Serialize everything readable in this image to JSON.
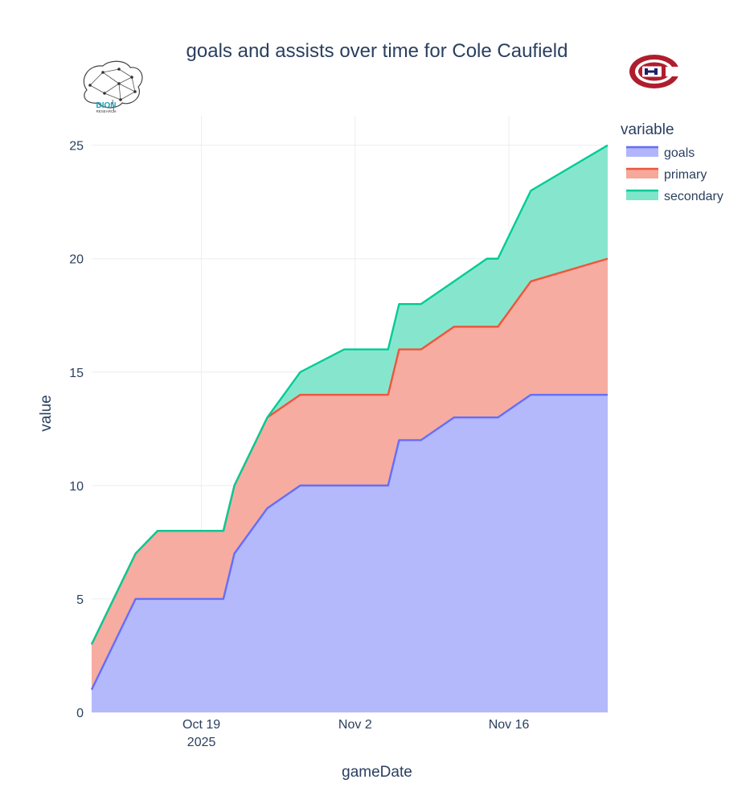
{
  "chart_data": {
    "type": "area",
    "title": "goals and assists over time for Cole Caufield",
    "xlabel": "gameDate",
    "ylabel": "value",
    "legend_title": "variable",
    "legend_position": "top-right",
    "stacked": true,
    "x": [
      "2025-10-09",
      "2025-10-11",
      "2025-10-13",
      "2025-10-15",
      "2025-10-18",
      "2025-10-21",
      "2025-10-22",
      "2025-10-25",
      "2025-10-28",
      "2025-11-01",
      "2025-11-05",
      "2025-11-06",
      "2025-11-08",
      "2025-11-11",
      "2025-11-14",
      "2025-11-15",
      "2025-11-18",
      "2025-11-25"
    ],
    "x_ticks": [
      {
        "date": "2025-10-19",
        "label": "Oct 19",
        "sublabel": "2025"
      },
      {
        "date": "2025-11-02",
        "label": "Nov 2",
        "sublabel": ""
      },
      {
        "date": "2025-11-16",
        "label": "Nov 16",
        "sublabel": ""
      }
    ],
    "ylim": [
      0,
      26.3
    ],
    "y_ticks": [
      0,
      5,
      10,
      15,
      20,
      25
    ],
    "grid": true,
    "series": [
      {
        "name": "goals",
        "line_color": "#636efa",
        "fill_color": "#b0b5fc",
        "values": [
          1,
          3,
          5,
          5,
          5,
          5,
          7,
          9,
          10,
          10,
          10,
          12,
          12,
          13,
          13,
          13,
          14,
          14
        ]
      },
      {
        "name": "primary",
        "line_color": "#ef553b",
        "fill_color": "#f6a89b",
        "values": [
          2,
          2,
          2,
          3,
          3,
          3,
          3,
          4,
          4,
          4,
          4,
          4,
          4,
          4,
          4,
          4,
          5,
          6
        ]
      },
      {
        "name": "secondary",
        "line_color": "#00cc96",
        "fill_color": "#7fe5ca",
        "values": [
          0,
          0,
          0,
          0,
          0,
          0,
          0,
          0,
          1,
          2,
          2,
          2,
          2,
          2,
          3,
          3,
          4,
          5
        ]
      }
    ]
  },
  "logos": {
    "left_text": "DION",
    "left_subtext": "RESEARCH",
    "left_icon": "brain-network-icon",
    "right_icon": "habs-logo-icon",
    "right_colors": [
      "#af1e2d",
      "#192168"
    ]
  }
}
